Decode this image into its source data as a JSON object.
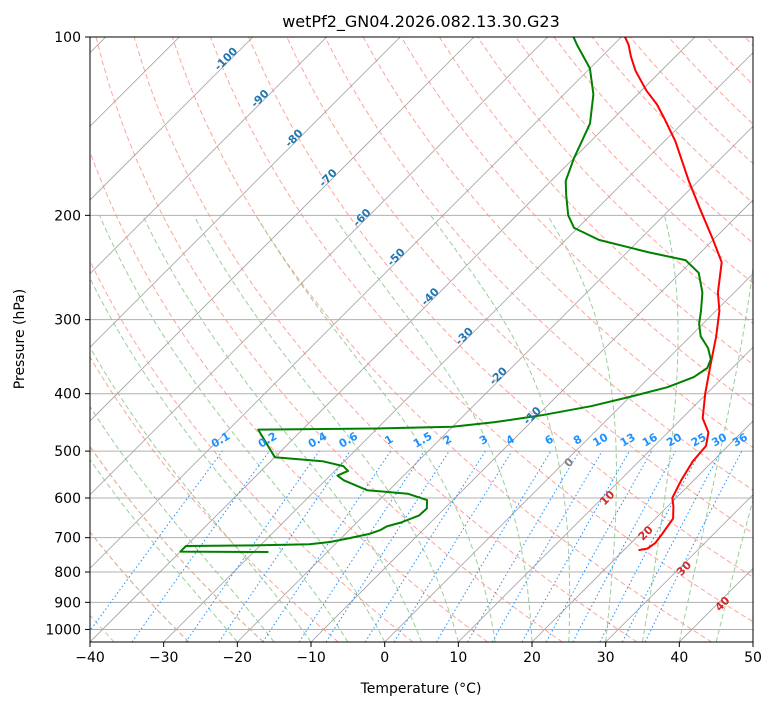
{
  "chart_data": {
    "type": "line",
    "subtype": "skew-t log-p",
    "title": "wetPf2_GN04.2026.082.13.30.G23",
    "xlabel": "Temperature (°C)",
    "ylabel": "Pressure (hPa)",
    "xlim": [
      -40,
      50
    ],
    "ylim": [
      1050,
      100
    ],
    "y_scale": "log",
    "x_ticks": [
      "−40",
      "−30",
      "−20",
      "−10",
      "0",
      "10",
      "20",
      "30",
      "40",
      "50"
    ],
    "x_tick_values": [
      -40,
      -30,
      -20,
      -10,
      0,
      10,
      20,
      30,
      40,
      50
    ],
    "y_ticks": [
      "100",
      "200",
      "300",
      "400",
      "500",
      "600",
      "700",
      "800",
      "900",
      "1000"
    ],
    "y_tick_values": [
      100,
      200,
      300,
      400,
      500,
      600,
      700,
      800,
      900,
      1000
    ],
    "grid": true,
    "series": [
      {
        "key": "temperature",
        "color": "#ff0000",
        "points": [
          {
            "p": 735,
            "t": 22.0
          },
          {
            "p": 730,
            "t": 23.0
          },
          {
            "p": 715,
            "t": 23.3
          },
          {
            "p": 690,
            "t": 23.0
          },
          {
            "p": 650,
            "t": 22.4
          },
          {
            "p": 620,
            "t": 20.8
          },
          {
            "p": 600,
            "t": 19.5
          },
          {
            "p": 560,
            "t": 18.3
          },
          {
            "p": 520,
            "t": 17.3
          },
          {
            "p": 490,
            "t": 17.0
          },
          {
            "p": 465,
            "t": 15.5
          },
          {
            "p": 440,
            "t": 12.8
          },
          {
            "p": 400,
            "t": 9.8
          },
          {
            "p": 360,
            "t": 6.8
          },
          {
            "p": 320,
            "t": 3.5
          },
          {
            "p": 290,
            "t": 0.5
          },
          {
            "p": 270,
            "t": -2.2
          },
          {
            "p": 240,
            "t": -5.8
          },
          {
            "p": 220,
            "t": -10.0
          },
          {
            "p": 195,
            "t": -16.0
          },
          {
            "p": 175,
            "t": -21.3
          },
          {
            "p": 150,
            "t": -28.5
          },
          {
            "p": 137,
            "t": -33.2
          },
          {
            "p": 130,
            "t": -36.0
          },
          {
            "p": 123,
            "t": -39.4
          },
          {
            "p": 114,
            "t": -43.5
          },
          {
            "p": 108,
            "t": -46.0
          },
          {
            "p": 103,
            "t": -48.0
          },
          {
            "p": 100,
            "t": -49.5
          }
        ]
      },
      {
        "key": "dewpoint",
        "color": "#008000",
        "points": [
          {
            "p": 740,
            "t": -28.0
          },
          {
            "p": 739,
            "t": -40.0
          },
          {
            "p": 723,
            "t": -40.0
          },
          {
            "p": 721,
            "t": -30.0
          },
          {
            "p": 718,
            "t": -23.5
          },
          {
            "p": 712,
            "t": -21.0
          },
          {
            "p": 702,
            "t": -19.0
          },
          {
            "p": 690,
            "t": -16.8
          },
          {
            "p": 680,
            "t": -15.8
          },
          {
            "p": 670,
            "t": -15.4
          },
          {
            "p": 660,
            "t": -14.0
          },
          {
            "p": 642,
            "t": -12.5
          },
          {
            "p": 625,
            "t": -12.4
          },
          {
            "p": 605,
            "t": -13.5
          },
          {
            "p": 590,
            "t": -17.0
          },
          {
            "p": 582,
            "t": -23.0
          },
          {
            "p": 560,
            "t": -27.5
          },
          {
            "p": 550,
            "t": -29.0
          },
          {
            "p": 540,
            "t": -28.2
          },
          {
            "p": 530,
            "t": -29.5
          },
          {
            "p": 520,
            "t": -33.0
          },
          {
            "p": 512,
            "t": -40.0
          },
          {
            "p": 460,
            "t": -46.0
          },
          {
            "p": 458,
            "t": -30.0
          },
          {
            "p": 455,
            "t": -20.0
          },
          {
            "p": 447,
            "t": -15.0
          },
          {
            "p": 435,
            "t": -9.5
          },
          {
            "p": 420,
            "t": -4.0
          },
          {
            "p": 405,
            "t": 0.0
          },
          {
            "p": 390,
            "t": 3.8
          },
          {
            "p": 375,
            "t": 6.0
          },
          {
            "p": 362,
            "t": 6.6
          },
          {
            "p": 350,
            "t": 5.9
          },
          {
            "p": 335,
            "t": 4.0
          },
          {
            "p": 320,
            "t": 1.4
          },
          {
            "p": 305,
            "t": -0.5
          },
          {
            "p": 290,
            "t": -2.0
          },
          {
            "p": 270,
            "t": -4.3
          },
          {
            "p": 250,
            "t": -7.5
          },
          {
            "p": 238,
            "t": -11.0
          },
          {
            "p": 231,
            "t": -17.0
          },
          {
            "p": 220,
            "t": -25.5
          },
          {
            "p": 210,
            "t": -30.5
          },
          {
            "p": 200,
            "t": -33.0
          },
          {
            "p": 185,
            "t": -36.0
          },
          {
            "p": 175,
            "t": -38.0
          },
          {
            "p": 160,
            "t": -40.0
          },
          {
            "p": 140,
            "t": -42.5
          },
          {
            "p": 125,
            "t": -46.0
          },
          {
            "p": 113,
            "t": -50.0
          },
          {
            "p": 103,
            "t": -55.0
          },
          {
            "p": 100,
            "t": -56.5
          }
        ]
      }
    ],
    "isotherm_labels": [
      {
        "text": "-100",
        "value": -100
      },
      {
        "text": "-90",
        "value": -90
      },
      {
        "text": "-80",
        "value": -80
      },
      {
        "text": "-70",
        "value": -70
      },
      {
        "text": "-60",
        "value": -60
      },
      {
        "text": "-50",
        "value": -50
      },
      {
        "text": "-40",
        "value": -40
      },
      {
        "text": "-30",
        "value": -30
      },
      {
        "text": "-20",
        "value": -20
      },
      {
        "text": "-10",
        "value": -10
      }
    ],
    "isotherm_label_color": "#1f77b4",
    "mixing_ratio_labels": [
      {
        "text": "0.1",
        "value": 0.1
      },
      {
        "text": "0.2",
        "value": 0.2
      },
      {
        "text": "0.4",
        "value": 0.4
      },
      {
        "text": "0.6",
        "value": 0.6
      },
      {
        "text": "1",
        "value": 1
      },
      {
        "text": "1.5",
        "value": 1.5
      },
      {
        "text": "2",
        "value": 2
      },
      {
        "text": "3",
        "value": 3
      },
      {
        "text": "4",
        "value": 4
      },
      {
        "text": "6",
        "value": 6
      },
      {
        "text": "8",
        "value": 8
      },
      {
        "text": "10",
        "value": 10
      },
      {
        "text": "13",
        "value": 13
      },
      {
        "text": "16",
        "value": 16
      },
      {
        "text": "20",
        "value": 20
      },
      {
        "text": "25",
        "value": 25
      },
      {
        "text": "30",
        "value": 30
      },
      {
        "text": "36",
        "value": 36
      }
    ],
    "mixing_ratio_label_color": "#1e90ff",
    "warm_isotherm_labels": [
      {
        "text": "0",
        "value": 0,
        "color": "#808080"
      },
      {
        "text": "10",
        "value": 10,
        "color": "#d62728"
      },
      {
        "text": "20",
        "value": 20,
        "color": "#d62728"
      },
      {
        "text": "30",
        "value": 30,
        "color": "#d62728"
      },
      {
        "text": "40",
        "value": 40,
        "color": "#d62728"
      }
    ],
    "colors": {
      "grid": "#b0b0b0",
      "skewed_isotherm": "#a0a0a0",
      "dry_adiabat": "#fa8072",
      "moist_adiabat": "#90c890",
      "mixing_ratio": "#1e90ff",
      "alt_dry_adiabat": "#d2b48c"
    }
  }
}
